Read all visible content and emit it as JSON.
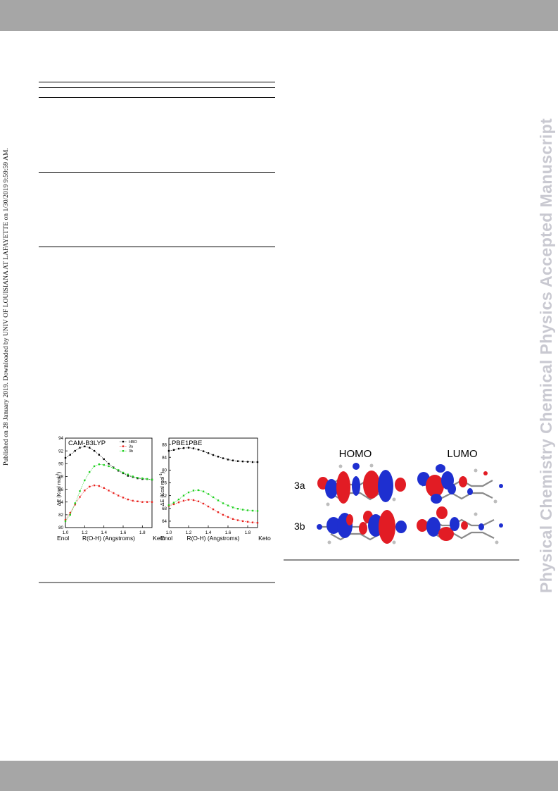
{
  "margin_note": "Published on 28 January 2019. Downloaded by UNIV OF LOUISIANA AT LAFAYETTE on 1/30/2019 9:59:59 AM.",
  "watermark": "Physical Chemistry Chemical Physics Accepted Manuscript",
  "figure_left": {
    "panels": [
      {
        "title": "CAM-B3LYP",
        "ylabel": "ΔE (Kcal mol",
        "ylabel_sup": "-1",
        "ylabel_end": ")",
        "xlabel": "R(O-H) (Angstroms)",
        "left_end_label": "Enol",
        "right_end_label": "Keto",
        "legend": [
          "HBO",
          "3a",
          "3b"
        ]
      },
      {
        "title": "PBE1PBE",
        "ylabel": "ΔE (Kcal mol",
        "ylabel_sup": "-1",
        "ylabel_end": ")",
        "xlabel": "R(O-H) (Angstroms)",
        "left_end_label": "Enol",
        "right_end_label": "Keto"
      }
    ]
  },
  "chart_data": [
    {
      "type": "line",
      "title": "CAM-B3LYP",
      "xlabel": "R(O-H) (Angstroms)",
      "ylabel": "ΔE (Kcal mol-1)",
      "xlim": [
        1.0,
        1.9
      ],
      "ylim": [
        80,
        94
      ],
      "xticks": [
        "1.0",
        "1.2",
        "1.4",
        "1.6",
        "1.8"
      ],
      "yticks": [
        "80",
        "82",
        "84",
        "86",
        "88",
        "90",
        "92",
        "94"
      ],
      "legend_position": "top-right",
      "grid": false,
      "series": [
        {
          "name": "HBO",
          "color": "#000000",
          "x": [
            1.0,
            1.05,
            1.1,
            1.15,
            1.2,
            1.25,
            1.3,
            1.35,
            1.4,
            1.45,
            1.5,
            1.55,
            1.6,
            1.65,
            1.7,
            1.75,
            1.8,
            1.85,
            1.9
          ],
          "y": [
            90.9,
            91.4,
            92.0,
            92.5,
            92.7,
            92.5,
            92.0,
            91.4,
            90.7,
            90.0,
            89.4,
            88.9,
            88.5,
            88.1,
            87.9,
            87.7,
            87.6,
            87.6,
            87.5
          ]
        },
        {
          "name": "3a",
          "color": "#e8231f",
          "x": [
            1.0,
            1.05,
            1.1,
            1.15,
            1.2,
            1.25,
            1.3,
            1.35,
            1.4,
            1.45,
            1.5,
            1.55,
            1.6,
            1.65,
            1.7,
            1.75,
            1.8,
            1.85,
            1.9
          ],
          "y": [
            81.2,
            82.3,
            83.6,
            84.8,
            85.8,
            86.4,
            86.6,
            86.5,
            86.2,
            85.8,
            85.4,
            85.0,
            84.7,
            84.4,
            84.2,
            84.1,
            84.0,
            84.0,
            84.0
          ]
        },
        {
          "name": "3b",
          "color": "#20d020",
          "x": [
            1.0,
            1.05,
            1.1,
            1.15,
            1.2,
            1.25,
            1.3,
            1.35,
            1.4,
            1.45,
            1.5,
            1.55,
            1.6,
            1.65,
            1.7,
            1.75,
            1.8,
            1.85,
            1.9
          ],
          "y": [
            81.0,
            82.0,
            83.8,
            85.7,
            87.4,
            88.7,
            89.6,
            89.9,
            89.8,
            89.6,
            89.3,
            89.0,
            88.6,
            88.3,
            88.0,
            87.8,
            87.7,
            87.6,
            87.5
          ]
        }
      ]
    },
    {
      "type": "line",
      "title": "PBE1PBE",
      "xlabel": "R(O-H) (Angstroms)",
      "ylabel": "ΔE (Kcal mol-1)",
      "xlim": [
        1.0,
        1.9
      ],
      "ylim": [
        62,
        90
      ],
      "xticks": [
        "1.0",
        "1.2",
        "1.4",
        "1.6",
        "1.8"
      ],
      "yticks": [
        "64",
        "68",
        "72",
        "76",
        "80",
        "84",
        "88"
      ],
      "grid": false,
      "series": [
        {
          "name": "HBO",
          "color": "#000000",
          "x": [
            1.0,
            1.05,
            1.1,
            1.15,
            1.2,
            1.25,
            1.3,
            1.35,
            1.4,
            1.45,
            1.5,
            1.55,
            1.6,
            1.65,
            1.7,
            1.75,
            1.8,
            1.85,
            1.9
          ],
          "y": [
            86.0,
            86.3,
            86.7,
            86.9,
            87.0,
            86.8,
            86.4,
            85.9,
            85.3,
            84.7,
            84.2,
            83.7,
            83.3,
            83.0,
            82.8,
            82.7,
            82.6,
            82.5,
            82.5
          ]
        },
        {
          "name": "3a",
          "color": "#e8231f",
          "x": [
            1.0,
            1.05,
            1.1,
            1.15,
            1.2,
            1.25,
            1.3,
            1.35,
            1.4,
            1.45,
            1.5,
            1.55,
            1.6,
            1.65,
            1.7,
            1.75,
            1.8,
            1.85,
            1.9
          ],
          "y": [
            68.8,
            69.3,
            69.9,
            70.4,
            70.7,
            70.6,
            70.2,
            69.5,
            68.6,
            67.7,
            66.8,
            66.0,
            65.3,
            64.7,
            64.3,
            64.0,
            63.8,
            63.6,
            63.5
          ]
        },
        {
          "name": "3b",
          "color": "#20d020",
          "x": [
            1.0,
            1.05,
            1.1,
            1.15,
            1.2,
            1.25,
            1.3,
            1.35,
            1.4,
            1.45,
            1.5,
            1.55,
            1.6,
            1.65,
            1.7,
            1.75,
            1.8,
            1.85,
            1.9
          ],
          "y": [
            69.0,
            69.8,
            70.8,
            72.0,
            73.0,
            73.6,
            73.7,
            73.3,
            72.5,
            71.5,
            70.5,
            69.6,
            68.9,
            68.3,
            67.9,
            67.6,
            67.4,
            67.3,
            67.2
          ]
        }
      ]
    }
  ],
  "figure_right": {
    "col_homo": "HOMO",
    "col_lumo": "LUMO",
    "row_3a": "3a",
    "row_3b": "3b",
    "lobe_colors": {
      "positive": "#e21c24",
      "negative": "#1e2fd0"
    }
  }
}
